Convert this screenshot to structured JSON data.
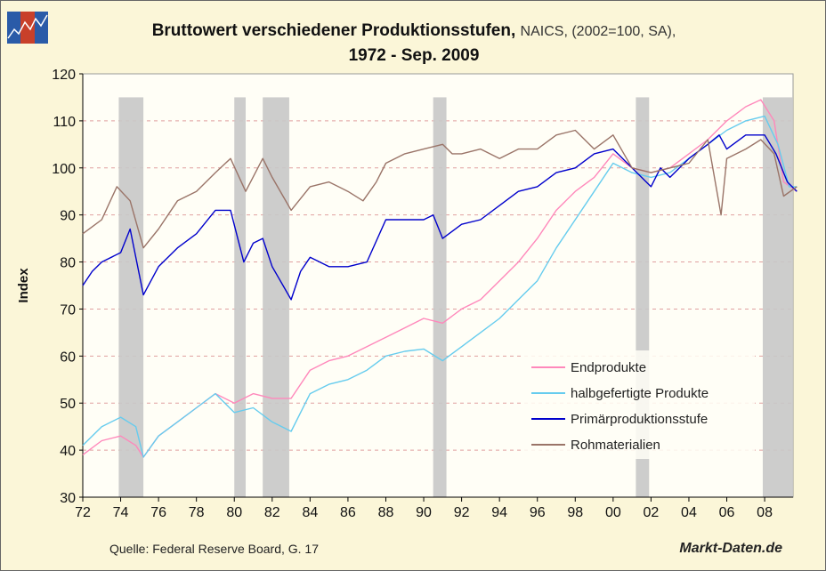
{
  "title": {
    "main": "Bruttowert verschiedener Produktionsstufen,",
    "suffix": "NAICS, (2002=100, SA),",
    "line2": "1972 - Sep. 2009"
  },
  "footer": {
    "source": "Quelle: Federal Reserve Board, G. 17",
    "brand": "Markt-Daten.de"
  },
  "logo": {
    "colors": [
      "#2a5ba8",
      "#c8402a",
      "#2a5ba8"
    ]
  },
  "chart_data": {
    "type": "line",
    "ylabel": "Index",
    "xlabel": "",
    "ylim": [
      30,
      120
    ],
    "xlim": [
      1972,
      2009.75
    ],
    "yticks": [
      30,
      40,
      50,
      60,
      70,
      80,
      90,
      100,
      110,
      120
    ],
    "xticks": [
      "72",
      "74",
      "76",
      "78",
      "80",
      "82",
      "84",
      "86",
      "88",
      "90",
      "92",
      "94",
      "96",
      "98",
      "00",
      "02",
      "04",
      "06",
      "08"
    ],
    "grid": "horizontal dashed",
    "legend": "bottom-right",
    "recessions": [
      [
        1973.9,
        1975.2
      ],
      [
        1980.0,
        1980.6
      ],
      [
        1981.5,
        1982.9
      ],
      [
        1990.5,
        1991.2
      ],
      [
        2001.2,
        2001.9
      ],
      [
        2007.9,
        2009.5
      ]
    ],
    "series": [
      {
        "name": "Endprodukte",
        "color": "#ff88bb",
        "points": [
          [
            1972,
            39
          ],
          [
            1973,
            42
          ],
          [
            1974,
            43
          ],
          [
            1974.8,
            41
          ],
          [
            1975.2,
            38.5
          ],
          [
            1976,
            43
          ],
          [
            1977,
            46
          ],
          [
            1978,
            49
          ],
          [
            1979,
            52
          ],
          [
            1980,
            50
          ],
          [
            1981,
            52
          ],
          [
            1982,
            51
          ],
          [
            1983,
            51
          ],
          [
            1984,
            57
          ],
          [
            1985,
            59
          ],
          [
            1986,
            60
          ],
          [
            1987,
            62
          ],
          [
            1988,
            64
          ],
          [
            1989,
            66
          ],
          [
            1990,
            68
          ],
          [
            1991,
            67
          ],
          [
            1992,
            70
          ],
          [
            1993,
            72
          ],
          [
            1994,
            76
          ],
          [
            1995,
            80
          ],
          [
            1996,
            85
          ],
          [
            1997,
            91
          ],
          [
            1998,
            95
          ],
          [
            1999,
            98
          ],
          [
            2000,
            103
          ],
          [
            2001,
            100
          ],
          [
            2002,
            99
          ],
          [
            2003,
            100
          ],
          [
            2004,
            103
          ],
          [
            2005,
            106
          ],
          [
            2006,
            110
          ],
          [
            2007,
            113
          ],
          [
            2007.8,
            114.5
          ],
          [
            2008.5,
            110
          ],
          [
            2009,
            97
          ],
          [
            2009.7,
            95
          ]
        ]
      },
      {
        "name": "halbgefertigte Produkte",
        "color": "#66ccee",
        "points": [
          [
            1972,
            41
          ],
          [
            1973,
            45
          ],
          [
            1974,
            47
          ],
          [
            1974.8,
            45
          ],
          [
            1975.2,
            38.5
          ],
          [
            1976,
            43
          ],
          [
            1977,
            46
          ],
          [
            1978,
            49
          ],
          [
            1979,
            52
          ],
          [
            1980,
            48
          ],
          [
            1981,
            49
          ],
          [
            1982,
            46
          ],
          [
            1983,
            44
          ],
          [
            1984,
            52
          ],
          [
            1985,
            54
          ],
          [
            1986,
            55
          ],
          [
            1987,
            57
          ],
          [
            1988,
            60
          ],
          [
            1989,
            61
          ],
          [
            1990,
            61.5
          ],
          [
            1991,
            59
          ],
          [
            1992,
            62
          ],
          [
            1993,
            65
          ],
          [
            1994,
            68
          ],
          [
            1995,
            72
          ],
          [
            1996,
            76
          ],
          [
            1997,
            83
          ],
          [
            1998,
            89
          ],
          [
            1999,
            95
          ],
          [
            2000,
            101
          ],
          [
            2001,
            99
          ],
          [
            2002,
            98
          ],
          [
            2003,
            99
          ],
          [
            2004,
            102
          ],
          [
            2005,
            105
          ],
          [
            2006,
            108
          ],
          [
            2007,
            110
          ],
          [
            2008,
            111
          ],
          [
            2008.7,
            105
          ],
          [
            2009.3,
            96
          ],
          [
            2009.7,
            96
          ]
        ]
      },
      {
        "name": "Primärproduktionsstufe",
        "color": "#0000cc",
        "points": [
          [
            1972,
            75
          ],
          [
            1972.5,
            78
          ],
          [
            1973,
            80
          ],
          [
            1974,
            82
          ],
          [
            1974.5,
            87
          ],
          [
            1975.2,
            73
          ],
          [
            1976,
            79
          ],
          [
            1977,
            83
          ],
          [
            1978,
            86
          ],
          [
            1979,
            91
          ],
          [
            1979.8,
            91
          ],
          [
            1980.5,
            80
          ],
          [
            1981,
            84
          ],
          [
            1981.5,
            85
          ],
          [
            1982,
            79
          ],
          [
            1983,
            72
          ],
          [
            1983.5,
            78
          ],
          [
            1984,
            81
          ],
          [
            1985,
            79
          ],
          [
            1986,
            79
          ],
          [
            1987,
            80
          ],
          [
            1988,
            89
          ],
          [
            1989,
            89
          ],
          [
            1990,
            89
          ],
          [
            1990.5,
            90
          ],
          [
            1991,
            85
          ],
          [
            1992,
            88
          ],
          [
            1993,
            89
          ],
          [
            1994,
            92
          ],
          [
            1995,
            95
          ],
          [
            1996,
            96
          ],
          [
            1997,
            99
          ],
          [
            1998,
            100
          ],
          [
            1999,
            103
          ],
          [
            2000,
            104
          ],
          [
            2001,
            100
          ],
          [
            2002,
            96
          ],
          [
            2002.5,
            100
          ],
          [
            2003,
            98
          ],
          [
            2004,
            102
          ],
          [
            2005,
            105
          ],
          [
            2005.6,
            107
          ],
          [
            2006,
            104
          ],
          [
            2007,
            107
          ],
          [
            2008,
            107
          ],
          [
            2008.6,
            103
          ],
          [
            2009.2,
            97
          ],
          [
            2009.7,
            95
          ]
        ]
      },
      {
        "name": "Rohmaterialien",
        "color": "#9a7468",
        "points": [
          [
            1972,
            86
          ],
          [
            1973,
            89
          ],
          [
            1973.8,
            96
          ],
          [
            1974.5,
            93
          ],
          [
            1975.2,
            83
          ],
          [
            1976,
            87
          ],
          [
            1977,
            93
          ],
          [
            1978,
            95
          ],
          [
            1979,
            99
          ],
          [
            1979.8,
            102
          ],
          [
            1980.6,
            95
          ],
          [
            1981.5,
            102
          ],
          [
            1982,
            98
          ],
          [
            1983,
            91
          ],
          [
            1984,
            96
          ],
          [
            1985,
            97
          ],
          [
            1986,
            95
          ],
          [
            1986.8,
            93
          ],
          [
            1987.5,
            97
          ],
          [
            1988,
            101
          ],
          [
            1989,
            103
          ],
          [
            1990,
            104
          ],
          [
            1991,
            105
          ],
          [
            1991.5,
            103
          ],
          [
            1992,
            103
          ],
          [
            1993,
            104
          ],
          [
            1994,
            102
          ],
          [
            1995,
            104
          ],
          [
            1996,
            104
          ],
          [
            1997,
            107
          ],
          [
            1998,
            108
          ],
          [
            1999,
            104
          ],
          [
            2000,
            107
          ],
          [
            2001,
            100
          ],
          [
            2002,
            99
          ],
          [
            2003,
            100
          ],
          [
            2004,
            101
          ],
          [
            2005,
            106
          ],
          [
            2005.7,
            90
          ],
          [
            2006,
            102
          ],
          [
            2007,
            104
          ],
          [
            2007.8,
            106
          ],
          [
            2008.5,
            103
          ],
          [
            2009,
            94
          ],
          [
            2009.7,
            96
          ]
        ]
      }
    ]
  }
}
